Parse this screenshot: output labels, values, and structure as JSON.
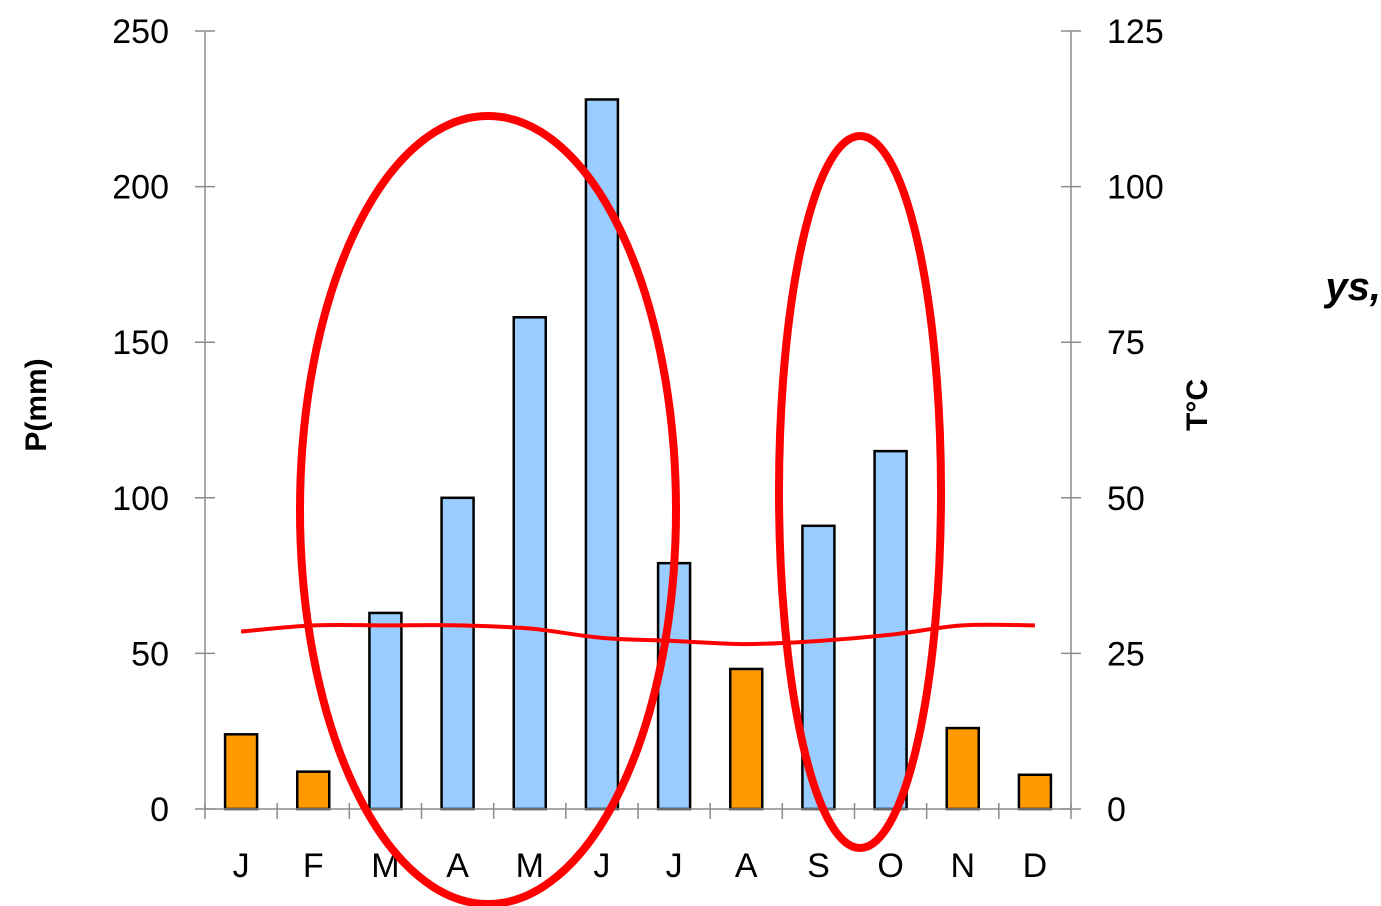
{
  "chart_data": {
    "type": "bar",
    "categories": [
      "J",
      "F",
      "M",
      "A",
      "M",
      "J",
      "J",
      "A",
      "S",
      "O",
      "N",
      "D"
    ],
    "series": [
      {
        "axis": "left",
        "values": [
          24,
          12,
          63,
          100,
          158,
          228,
          79,
          45,
          91,
          115,
          26,
          11
        ],
        "colors": [
          "#FF9900",
          "#FF9900",
          "#99CCFF",
          "#99CCFF",
          "#99CCFF",
          "#99CCFF",
          "#99CCFF",
          "#FF9900",
          "#99CCFF",
          "#99CCFF",
          "#FF9900",
          "#FF9900"
        ]
      },
      {
        "type": "line",
        "axis": "right",
        "color": "#FF0000",
        "values": [
          28.5,
          29.5,
          29.5,
          29.5,
          29,
          27.5,
          27,
          26.5,
          27,
          28,
          29.5,
          29.5
        ]
      }
    ],
    "ylabel": "P(mm)",
    "ylim": [
      0,
      250
    ],
    "yticks": [
      0,
      50,
      100,
      150,
      200,
      250
    ],
    "y2label": "T°C",
    "y2lim": [
      0,
      125
    ],
    "y2ticks": [
      0,
      25,
      50,
      75,
      100,
      125
    ],
    "grid": false,
    "annotations": [
      {
        "shape": "ellipse",
        "color": "#FF0000",
        "spans": [
          "M",
          "J"
        ]
      },
      {
        "shape": "ellipse",
        "color": "#FF0000",
        "spans": [
          "S",
          "O"
        ]
      }
    ]
  },
  "fragment_text": "ys,"
}
